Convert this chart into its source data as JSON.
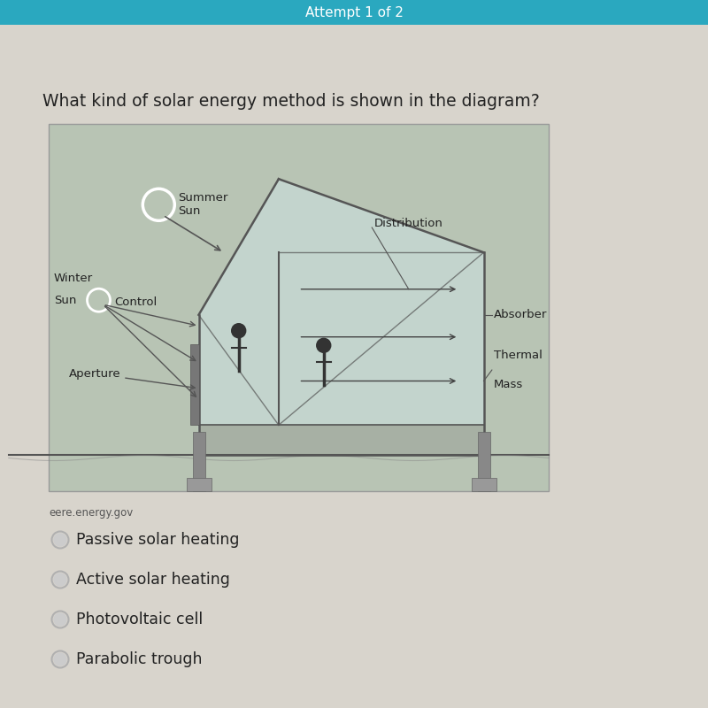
{
  "bg_color": "#d8d4cc",
  "header_color": "#2aa8bf",
  "header_text": "Attempt 1 of 2",
  "question": "What kind of solar energy method is shown in the diagram?",
  "source": "eere.energy.gov",
  "options": [
    "Passive solar heating",
    "Active solar heating",
    "Photovoltaic cell",
    "Parabolic trough"
  ],
  "diagram_bg": "#b8c4b4",
  "line_color": "#555555",
  "glass_color": "#c8dcd8",
  "floor_color": "#a0a89a",
  "pillar_color": "#888888"
}
